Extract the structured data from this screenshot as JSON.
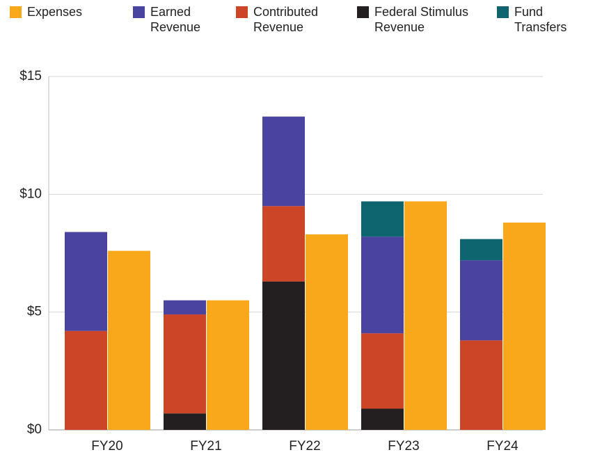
{
  "chart_data": {
    "type": "bar",
    "categories": [
      "FY20",
      "FY21",
      "FY22",
      "FY23",
      "FY24"
    ],
    "series": [
      {
        "name": "Expenses",
        "color": "#f9a81b",
        "values": [
          7.6,
          5.5,
          8.3,
          9.7,
          8.8
        ]
      },
      {
        "name": "Earned Revenue",
        "color": "#4a43a0",
        "values": [
          4.2,
          0.6,
          3.8,
          4.1,
          3.4
        ]
      },
      {
        "name": "Contributed Revenue",
        "color": "#cc4526",
        "values": [
          4.2,
          4.2,
          3.2,
          3.2,
          3.8
        ]
      },
      {
        "name": "Federal Stimulus Revenue",
        "color": "#231f20",
        "values": [
          0,
          0.7,
          6.3,
          0.9,
          0
        ]
      },
      {
        "name": "Fund Transfers",
        "color": "#0e6570",
        "values": [
          0,
          0,
          0,
          1.5,
          0.9
        ]
      }
    ],
    "ylim": [
      0,
      15
    ],
    "yticks": [
      {
        "value": 0,
        "label": "$0"
      },
      {
        "value": 5,
        "label": "$5"
      },
      {
        "value": 10,
        "label": "$10"
      },
      {
        "value": 15,
        "label": "$15"
      }
    ],
    "grid": true
  }
}
